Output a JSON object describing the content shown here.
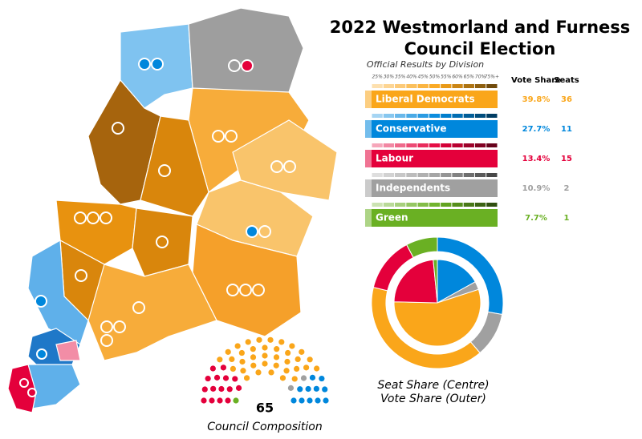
{
  "title_line1": "2022 Westmorland and Furness",
  "title_line2": "Council Election",
  "subtitle": "Official Results by Division",
  "scale_labels": [
    "25%",
    "30%",
    "35%",
    "40%",
    "45%",
    "50%",
    "55%",
    "60%",
    "65%",
    "70%",
    "75%+"
  ],
  "headers": {
    "vote_share": "Vote Share",
    "seats": "Seats"
  },
  "parties": [
    {
      "name": "Liberal Democrats",
      "color": "#faa61a",
      "vote_share": 39.8,
      "vote_share_label": "39.8%",
      "seats": 36
    },
    {
      "name": "Conservative",
      "color": "#0087dc",
      "vote_share": 27.7,
      "vote_share_label": "27.7%",
      "seats": 11
    },
    {
      "name": "Labour",
      "color": "#e4003b",
      "vote_share": 13.4,
      "vote_share_label": "13.4%",
      "seats": 15
    },
    {
      "name": "Independents",
      "color": "#a0a0a0",
      "vote_share": 10.9,
      "vote_share_label": "10.9%",
      "seats": 2
    },
    {
      "name": "Green",
      "color": "#6ab023",
      "vote_share": 7.7,
      "vote_share_label": "7.7%",
      "seats": 1
    }
  ],
  "donut_caption": [
    "Seat Share (Centre)",
    "Vote Share (Outer)"
  ],
  "total_seats": 65,
  "composition_label": "Council Composition"
}
